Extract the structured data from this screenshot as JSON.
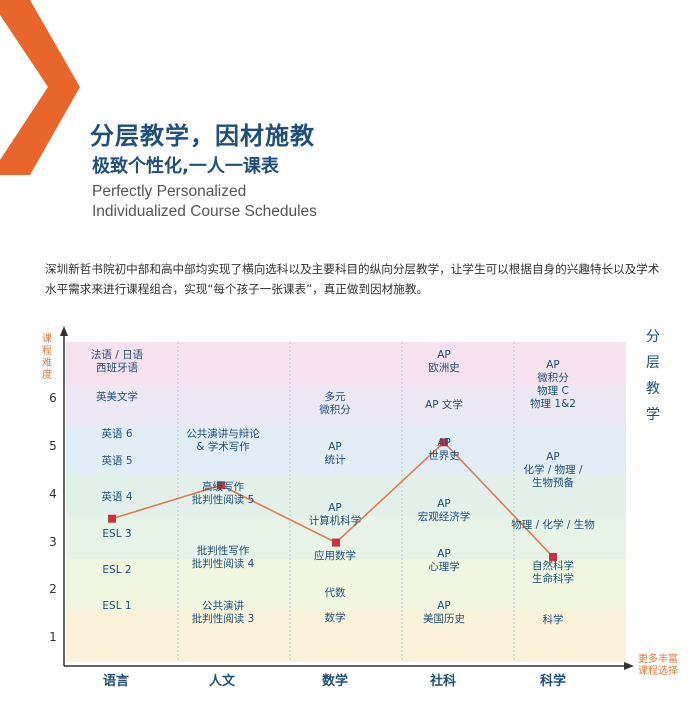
{
  "header": {
    "title_cn": "分层教学，因材施教",
    "subtitle_cn": "极致个性化,一人一课表",
    "subtitle_en_line1": "Perfectly Personalized",
    "subtitle_en_line2": "Individualized Course Schedules",
    "accent_color": "#e8662b",
    "title_color": "#1f4f7a"
  },
  "intro": {
    "text": "深圳新哲书院初中部和高中部均实现了横向选科以及主要科目的纵向分层教学，让学生可以根据自身的兴趣特长以及学术水平需求来进行课程组合，实现“每个孩子一张课表”，真正做到因材施教。"
  },
  "chart": {
    "y_axis_label": "课程难度",
    "x_axis_label": "更多丰富课程选择",
    "side_title": "分层教学",
    "y_ticks": [
      "1",
      "2",
      "3",
      "4",
      "5",
      "6"
    ],
    "columns": [
      "语言",
      "人文",
      "数学",
      "社科",
      "科学"
    ],
    "band_colors": [
      "#fbf3d9",
      "#f0f6e0",
      "#e6f3e6",
      "#e3f0e9",
      "#e1ecf5",
      "#ece8f3",
      "#f6e1ee"
    ],
    "line_color": "#e07a52",
    "marker_color": "#c8323c",
    "cells": {
      "lang": [
        "法语 / 日语",
        "西班牙语",
        "英美文学",
        "英语 6",
        "英语 5",
        "英语 4",
        "ESL 3",
        "ESL 2",
        "ESL 1"
      ],
      "hum": [
        "公共演讲与辩论",
        "& 学术写作",
        "高级写作",
        "批判性阅读 5",
        "批判性写作",
        "批判性阅读 4",
        "公共演讲",
        "批判性阅读 3"
      ],
      "math": [
        "多元",
        "微积分",
        "AP",
        "统计",
        "AP",
        "计算机科学",
        "应用数学",
        "代数",
        "数学"
      ],
      "soc": [
        "AP",
        "欧洲史",
        "AP 文学",
        "AP",
        "世界史",
        "AP",
        "宏观经济学",
        "AP",
        "心理学",
        "AP",
        "美国历史"
      ],
      "sci": [
        "AP",
        "微积分",
        "物理 C",
        "物理 1&2",
        "AP",
        "化学 / 物理 /",
        "生物预备",
        "物理 / 化学 / 生物",
        "自然科学",
        "生命科学",
        "科学"
      ]
    }
  },
  "chart_data": {
    "type": "line",
    "categories": [
      "语言",
      "人文",
      "数学",
      "社科",
      "科学"
    ],
    "values": [
      3.5,
      4.2,
      3.0,
      5.1,
      2.7
    ],
    "xlabel": "更多丰富课程选择",
    "ylabel": "课程难度",
    "ylim": [
      0.5,
      7.2
    ],
    "yticks": [
      1,
      2,
      3,
      4,
      5,
      6
    ],
    "grid": false
  }
}
